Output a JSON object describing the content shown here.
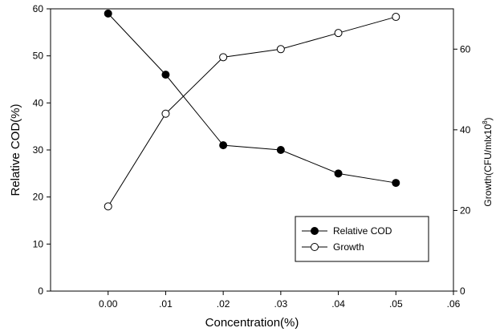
{
  "chart_data": {
    "type": "line",
    "title": "",
    "xlabel": "Concentration(%)",
    "ylabel_left": "Relative COD(%)",
    "ylabel_right_main": "Growth(CFU/mlx10",
    "ylabel_right_sup": "8",
    "ylabel_right_end": ")",
    "xlim": [
      -0.01,
      0.06
    ],
    "ylim_left": [
      0,
      60
    ],
    "ylim_right": [
      0,
      70
    ],
    "x_ticks": [
      0.0,
      0.01,
      0.02,
      0.03,
      0.04,
      0.05,
      0.06
    ],
    "x_tick_labels": [
      "0.00",
      ".01",
      ".02",
      ".03",
      ".04",
      ".05",
      ".06"
    ],
    "y_left_ticks": [
      0,
      10,
      20,
      30,
      40,
      50,
      60
    ],
    "y_left_tick_labels": [
      "0",
      "10",
      "20",
      "30",
      "40",
      "50",
      "60"
    ],
    "y_right_ticks": [
      0,
      20,
      40,
      60
    ],
    "y_right_tick_labels": [
      "0",
      "20",
      "40",
      "60"
    ],
    "grid": false,
    "legend_position": "bottom-right",
    "series": [
      {
        "name": "Relative COD",
        "axis": "left",
        "marker": "filled-circle",
        "x": [
          0.0,
          0.01,
          0.02,
          0.03,
          0.04,
          0.05
        ],
        "values": [
          59,
          46,
          31,
          30,
          25,
          23
        ]
      },
      {
        "name": "Growth",
        "axis": "right",
        "marker": "open-circle",
        "x": [
          0.0,
          0.01,
          0.02,
          0.03,
          0.04,
          0.05
        ],
        "values": [
          21,
          44,
          58,
          60,
          64,
          68
        ]
      }
    ],
    "colors": {
      "line": "#000000",
      "background": "#ffffff"
    }
  }
}
